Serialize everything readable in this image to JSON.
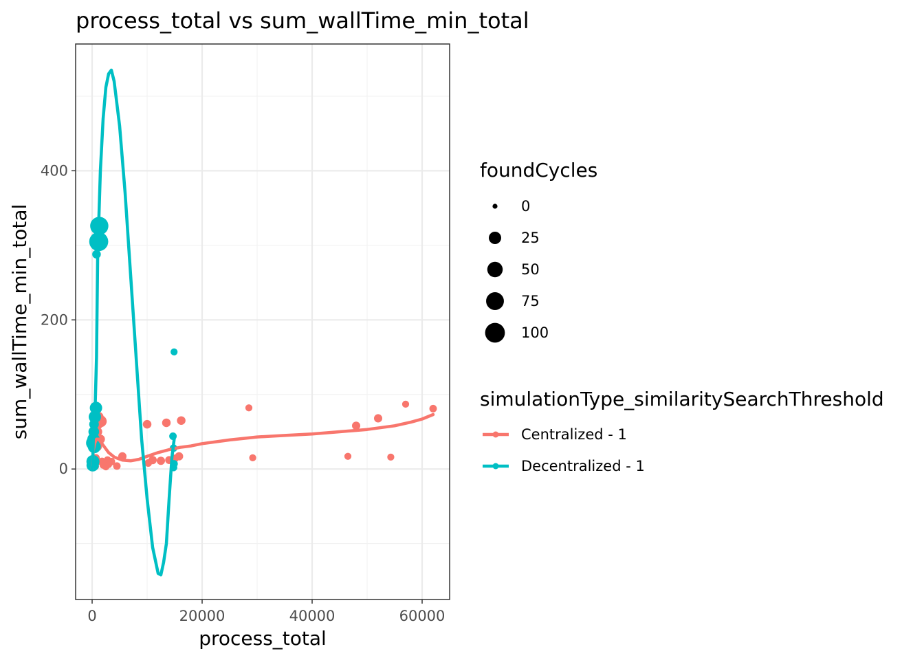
{
  "chart_data": {
    "type": "scatter",
    "title": "process_total  vs  sum_wallTime_min_total",
    "xlabel": "process_total",
    "ylabel": "sum_wallTime_min_total",
    "xlim": [
      -3000,
      65000
    ],
    "ylim": [
      -175,
      570
    ],
    "x_ticks": [
      0,
      20000,
      40000,
      60000
    ],
    "x_tick_labels": [
      "0",
      "20000",
      "40000",
      "60000"
    ],
    "y_ticks": [
      0,
      200,
      400
    ],
    "y_tick_labels": [
      "0",
      "200",
      "400"
    ],
    "grid": true,
    "theme": "bw",
    "legend_position": "right",
    "size_legend": {
      "title": "foundCycles",
      "breaks": [
        0,
        25,
        50,
        75,
        100
      ],
      "labels": [
        "0",
        "25",
        "50",
        "75",
        "100"
      ]
    },
    "color_legend": {
      "title": "simulationType_similaritySearchThreshold"
    },
    "series": [
      {
        "name": "Centralized - 1",
        "color": "#F8766D",
        "points": [
          {
            "x": 400,
            "y": 5,
            "size": 0
          },
          {
            "x": 600,
            "y": 8,
            "size": 2
          },
          {
            "x": 700,
            "y": 15,
            "size": 3
          },
          {
            "x": 800,
            "y": 3,
            "size": 0
          },
          {
            "x": 900,
            "y": 10,
            "size": 4
          },
          {
            "x": 1000,
            "y": 30,
            "size": 6
          },
          {
            "x": 1000,
            "y": 50,
            "size": 8
          },
          {
            "x": 1100,
            "y": 60,
            "size": 10
          },
          {
            "x": 1200,
            "y": 70,
            "size": 10
          },
          {
            "x": 1300,
            "y": 66,
            "size": 12
          },
          {
            "x": 1500,
            "y": 40,
            "size": 8
          },
          {
            "x": 1600,
            "y": 64,
            "size": 20
          },
          {
            "x": 1800,
            "y": 10,
            "size": 4
          },
          {
            "x": 2000,
            "y": 5,
            "size": 2
          },
          {
            "x": 2200,
            "y": 8,
            "size": 2
          },
          {
            "x": 2500,
            "y": 3,
            "size": 2
          },
          {
            "x": 2800,
            "y": 12,
            "size": 3
          },
          {
            "x": 3000,
            "y": 6,
            "size": 2
          },
          {
            "x": 3500,
            "y": 10,
            "size": 3
          },
          {
            "x": 4500,
            "y": 4,
            "size": 3
          },
          {
            "x": 5500,
            "y": 17,
            "size": 5
          },
          {
            "x": 10000,
            "y": 60,
            "size": 6
          },
          {
            "x": 10200,
            "y": 8,
            "size": 3
          },
          {
            "x": 11000,
            "y": 12,
            "size": 5
          },
          {
            "x": 12500,
            "y": 11,
            "size": 5
          },
          {
            "x": 13500,
            "y": 62,
            "size": 6
          },
          {
            "x": 14000,
            "y": 12,
            "size": 4
          },
          {
            "x": 15000,
            "y": 14,
            "size": 4
          },
          {
            "x": 15800,
            "y": 17,
            "size": 5
          },
          {
            "x": 16200,
            "y": 65,
            "size": 6
          },
          {
            "x": 28500,
            "y": 82,
            "size": 2
          },
          {
            "x": 29200,
            "y": 15,
            "size": 2
          },
          {
            "x": 46500,
            "y": 17,
            "size": 2
          },
          {
            "x": 48000,
            "y": 58,
            "size": 5
          },
          {
            "x": 52000,
            "y": 68,
            "size": 5
          },
          {
            "x": 54300,
            "y": 16,
            "size": 2
          },
          {
            "x": 57000,
            "y": 87,
            "size": 2
          },
          {
            "x": 62000,
            "y": 81,
            "size": 3
          }
        ],
        "smooth": [
          [
            0,
            0
          ],
          [
            200,
            25
          ],
          [
            500,
            35
          ],
          [
            800,
            40
          ],
          [
            1200,
            40
          ],
          [
            1600,
            36
          ],
          [
            2200,
            30
          ],
          [
            3000,
            22
          ],
          [
            4000,
            16
          ],
          [
            5500,
            12
          ],
          [
            7000,
            11
          ],
          [
            8500,
            13
          ],
          [
            10000,
            17
          ],
          [
            12000,
            22
          ],
          [
            14000,
            26
          ],
          [
            16000,
            29
          ],
          [
            18000,
            31
          ],
          [
            20000,
            34
          ],
          [
            25000,
            39
          ],
          [
            30000,
            43
          ],
          [
            35000,
            45
          ],
          [
            40000,
            47
          ],
          [
            45000,
            50
          ],
          [
            50000,
            53
          ],
          [
            55000,
            58
          ],
          [
            58000,
            63
          ],
          [
            60000,
            67
          ],
          [
            62000,
            73
          ]
        ]
      },
      {
        "name": "Decentralized - 1",
        "color": "#00BFC4",
        "points": [
          {
            "x": 100,
            "y": 5,
            "size": 25
          },
          {
            "x": 150,
            "y": 10,
            "size": 30
          },
          {
            "x": 200,
            "y": 35,
            "size": 40
          },
          {
            "x": 250,
            "y": 40,
            "size": 25
          },
          {
            "x": 300,
            "y": 50,
            "size": 15
          },
          {
            "x": 350,
            "y": 60,
            "size": 10
          },
          {
            "x": 400,
            "y": 30,
            "size": 30
          },
          {
            "x": 500,
            "y": 70,
            "size": 25
          },
          {
            "x": 700,
            "y": 82,
            "size": 25
          },
          {
            "x": 800,
            "y": 288,
            "size": 6
          },
          {
            "x": 1200,
            "y": 305,
            "size": 90
          },
          {
            "x": 1300,
            "y": 326,
            "size": 80
          },
          {
            "x": 14700,
            "y": 44,
            "size": 3
          },
          {
            "x": 14800,
            "y": 2,
            "size": 3
          },
          {
            "x": 14800,
            "y": 28,
            "size": 3
          },
          {
            "x": 14900,
            "y": 7,
            "size": 3
          },
          {
            "x": 14900,
            "y": 157,
            "size": 2
          }
        ],
        "smooth": [
          [
            0,
            0
          ],
          [
            100,
            7
          ],
          [
            200,
            35
          ],
          [
            300,
            60
          ],
          [
            500,
            70
          ],
          [
            800,
            150
          ],
          [
            1000,
            280
          ],
          [
            1200,
            330
          ],
          [
            1500,
            400
          ],
          [
            2000,
            470
          ],
          [
            2500,
            512
          ],
          [
            3000,
            530
          ],
          [
            3500,
            535
          ],
          [
            4000,
            520
          ],
          [
            5000,
            460
          ],
          [
            6000,
            370
          ],
          [
            7000,
            260
          ],
          [
            8000,
            150
          ],
          [
            9000,
            40
          ],
          [
            10000,
            -40
          ],
          [
            11000,
            -105
          ],
          [
            12000,
            -140
          ],
          [
            12500,
            -142
          ],
          [
            13000,
            -125
          ],
          [
            13500,
            -100
          ],
          [
            14000,
            -40
          ],
          [
            14500,
            15
          ],
          [
            15000,
            45
          ]
        ]
      }
    ]
  }
}
